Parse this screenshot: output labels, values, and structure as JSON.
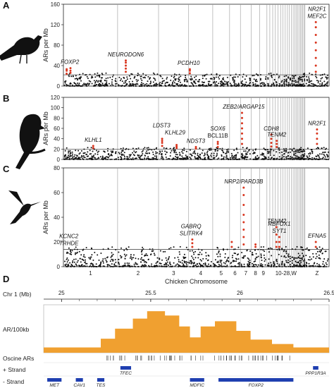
{
  "chart_data": [
    {
      "type": "scatter",
      "panel_letter": "A",
      "ylabel": "ARs per Mb",
      "ylim": [
        0,
        160
      ],
      "yticks": [
        0,
        40,
        80,
        120,
        160
      ],
      "threshold": 22,
      "icon": "songbird-silhouette",
      "labels": [
        {
          "text": "FOXP2",
          "italic": true,
          "chrom": "1",
          "x": 0.12
        },
        {
          "text": "NEURODON6",
          "italic": true,
          "chrom": "2",
          "x": 0.2
        },
        {
          "text": "PCDH10",
          "italic": true,
          "chrom": "4",
          "x": 0.0
        },
        {
          "text": "NR2F1",
          "italic": true,
          "chrom": "Z",
          "x": 0.5
        },
        {
          "text": "MEF2C",
          "italic": true,
          "chrom": "Z",
          "x": 0.5
        }
      ],
      "red_points": [
        {
          "chrom": "1",
          "x": 0.06,
          "y": [
            24,
            30,
            33
          ]
        },
        {
          "chrom": "1",
          "x": 0.13,
          "y": [
            26,
            30,
            35
          ]
        },
        {
          "chrom": "2",
          "x": 0.2,
          "y": [
            28,
            34,
            40,
            46,
            50
          ]
        },
        {
          "chrom": "4",
          "x": 0.05,
          "y": [
            25,
            30,
            33
          ]
        },
        {
          "chrom": "Z",
          "x": 0.45,
          "y": [
            28,
            40,
            55,
            70,
            85,
            100,
            115,
            125
          ]
        }
      ]
    },
    {
      "type": "scatter",
      "panel_letter": "B",
      "ylabel": "ARs per Mb",
      "ylim": [
        0,
        120
      ],
      "yticks": [
        0,
        20,
        40,
        60,
        80,
        100,
        120
      ],
      "threshold": 20,
      "icon": "parrot-silhouette",
      "labels": [
        {
          "text": "KLHL1",
          "italic": true,
          "chrom": "1",
          "x": 0.55
        },
        {
          "text": "LDST3",
          "italic": true,
          "chrom": "3",
          "x": 0.1
        },
        {
          "text": "KLHL29",
          "italic": true,
          "chrom": "3",
          "x": 0.55
        },
        {
          "text": "NDST3",
          "italic": true,
          "chrom": "4",
          "x": 0.3
        },
        {
          "text": "SOX6",
          "italic": true,
          "chrom": "5",
          "x": 0.3
        },
        {
          "text": "BCL11B",
          "italic": false,
          "chrom": "5",
          "x": 0.3
        },
        {
          "text": "ZEB2/ARGAP15",
          "italic": true,
          "chrom": "7",
          "x": 0.3
        },
        {
          "text": "CDH8",
          "italic": true,
          "chrom": "11",
          "x": 0.5
        },
        {
          "text": "TENM2",
          "italic": true,
          "chrom": "13",
          "x": 0.5
        },
        {
          "text": "NR2F1",
          "italic": true,
          "chrom": "Z",
          "x": 0.5
        }
      ],
      "red_points": [
        {
          "chrom": "1",
          "x": 0.55,
          "y": [
            22,
            26
          ]
        },
        {
          "chrom": "3",
          "x": 0.12,
          "y": [
            26,
            32,
            36,
            40
          ]
        },
        {
          "chrom": "3",
          "x": 0.6,
          "y": [
            22,
            25,
            28
          ]
        },
        {
          "chrom": "4",
          "x": 0.3,
          "y": [
            21,
            24
          ]
        },
        {
          "chrom": "5",
          "x": 0.3,
          "y": [
            24,
            30,
            34
          ]
        },
        {
          "chrom": "7",
          "x": 0.15,
          "y": [
            30,
            40,
            50,
            60,
            70,
            80,
            90
          ]
        },
        {
          "chrom": "11",
          "x": 0.5,
          "y": [
            25,
            32,
            40,
            48
          ]
        },
        {
          "chrom": "13",
          "x": 0.5,
          "y": [
            24,
            30,
            36
          ]
        },
        {
          "chrom": "Z",
          "x": 0.5,
          "y": [
            30,
            40,
            50,
            58
          ]
        }
      ]
    },
    {
      "type": "scatter",
      "panel_letter": "C",
      "ylabel": "ARs per Mb",
      "ylim": [
        0,
        80
      ],
      "yticks": [
        0,
        20,
        40,
        60,
        80
      ],
      "threshold": 14,
      "icon": "hummingbird-silhouette",
      "xlabel": "Chicken Chromosome",
      "labels": [
        {
          "text": "KCNC2",
          "italic": true,
          "chrom": "1",
          "x": 0.1
        },
        {
          "text": "TRHDE",
          "italic": true,
          "chrom": "1",
          "x": 0.1
        },
        {
          "text": "GABRQ",
          "italic": true,
          "chrom": "4",
          "x": 0.1
        },
        {
          "text": "SLITRK4",
          "italic": true,
          "chrom": "4",
          "x": 0.1
        },
        {
          "text": "NRP2/PARD3B",
          "italic": true,
          "chrom": "7",
          "x": 0.3
        },
        {
          "text": "TENM2",
          "italic": true,
          "chrom": "13",
          "x": 0.5
        },
        {
          "text": "RBFOX1",
          "italic": true,
          "chrom": "14",
          "x": 0.5
        },
        {
          "text": "SYT1",
          "italic": true,
          "chrom": "14",
          "x": 0.5
        },
        {
          "text": "EFNA5",
          "italic": true,
          "chrom": "Z",
          "x": 0.5
        }
      ],
      "red_points": [
        {
          "chrom": "4",
          "x": 0.15,
          "y": [
            16,
            19,
            22
          ]
        },
        {
          "chrom": "6",
          "x": 0.2,
          "y": [
            16,
            20
          ]
        },
        {
          "chrom": "7",
          "x": 0.3,
          "y": [
            18,
            24,
            30,
            36,
            42,
            50,
            58,
            64
          ]
        },
        {
          "chrom": "8",
          "x": 0.5,
          "y": [
            16,
            18
          ]
        },
        {
          "chrom": "13",
          "x": 0.4,
          "y": [
            16,
            20,
            26,
            32
          ]
        },
        {
          "chrom": "14",
          "x": 0.5,
          "y": [
            16,
            20,
            24
          ]
        },
        {
          "chrom": "Z",
          "x": 0.45,
          "y": [
            16,
            20
          ]
        }
      ]
    },
    {
      "type": "area",
      "panel_letter": "D",
      "axis_label": "Chr 1 (Mb)",
      "xlim": [
        24.9,
        26.5
      ],
      "xticks": [
        25.0,
        25.5,
        26.0,
        26.5
      ],
      "track_title": "AR/100kb",
      "steps": [
        {
          "x0": 24.9,
          "x1": 25.22,
          "y": 0.12
        },
        {
          "x0": 25.22,
          "x1": 25.3,
          "y": 0.32
        },
        {
          "x0": 25.3,
          "x1": 25.4,
          "y": 0.55
        },
        {
          "x0": 25.4,
          "x1": 25.48,
          "y": 0.78
        },
        {
          "x0": 25.48,
          "x1": 25.58,
          "y": 0.95
        },
        {
          "x0": 25.58,
          "x1": 25.66,
          "y": 0.85
        },
        {
          "x0": 25.66,
          "x1": 25.72,
          "y": 0.6
        },
        {
          "x0": 25.72,
          "x1": 25.78,
          "y": 0.35
        },
        {
          "x0": 25.78,
          "x1": 25.86,
          "y": 0.6
        },
        {
          "x0": 25.86,
          "x1": 25.98,
          "y": 0.72
        },
        {
          "x0": 25.98,
          "x1": 26.06,
          "y": 0.5
        },
        {
          "x0": 26.06,
          "x1": 26.18,
          "y": 0.3
        },
        {
          "x0": 26.18,
          "x1": 26.3,
          "y": 0.2
        },
        {
          "x0": 26.3,
          "x1": 26.5,
          "y": 0.12
        }
      ],
      "tracks": [
        {
          "label": "Oscine ARs"
        },
        {
          "label": "+ Strand"
        },
        {
          "label": "- Strand"
        }
      ],
      "plus_genes": [
        {
          "name": "TFEC",
          "start": 25.33,
          "end": 25.39
        },
        {
          "name": "PPP1R3A",
          "start": 26.41,
          "end": 26.44
        }
      ],
      "minus_genes": [
        {
          "name": "MET",
          "start": 24.92,
          "end": 25.0
        },
        {
          "name": "CAV1",
          "start": 25.08,
          "end": 25.12
        },
        {
          "name": "TES",
          "start": 25.2,
          "end": 25.24
        },
        {
          "name": "MDFIC",
          "start": 25.72,
          "end": 25.8
        },
        {
          "name": "FOXP2",
          "start": 25.88,
          "end": 26.3
        }
      ]
    }
  ],
  "chromosomes": [
    "1",
    "2",
    "3",
    "4",
    "5",
    "6",
    "7",
    "8",
    "9",
    "10-28,W",
    "Z"
  ],
  "colors": {
    "black_points": "#111111",
    "red_points": "#d9361f",
    "grid": "#999999",
    "area_fill": "#f0a030",
    "gene_bar": "#1f3fb0"
  }
}
